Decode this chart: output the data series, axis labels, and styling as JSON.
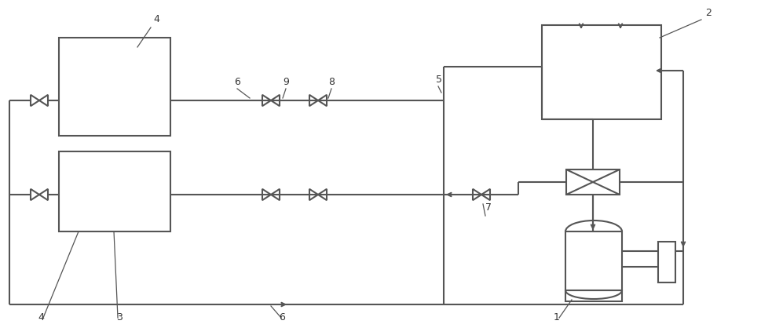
{
  "line_color": "#555555",
  "line_width": 1.5,
  "bg_color": "#ffffff",
  "label_color": "#333333",
  "label_fontsize": 9,
  "fig_width": 9.69,
  "fig_height": 4.18,
  "dpi": 100
}
